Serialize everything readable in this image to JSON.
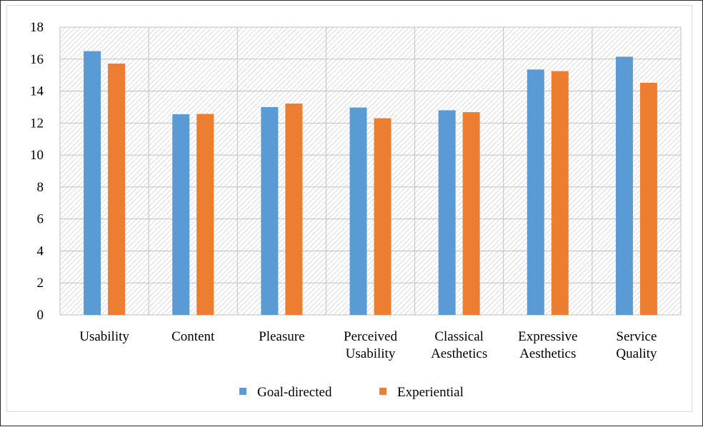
{
  "chart_data": {
    "type": "bar",
    "categories": [
      [
        "Usability"
      ],
      [
        "Content"
      ],
      [
        "Pleasure"
      ],
      [
        "Perceived",
        "Usability"
      ],
      [
        "Classical",
        "Aesthetics"
      ],
      [
        "Expressive",
        "Aesthetics"
      ],
      [
        "Service",
        "Quality"
      ]
    ],
    "series": [
      {
        "name": "Goal-directed",
        "color": "#5b9bd5",
        "values": [
          16.5,
          12.55,
          13.0,
          12.97,
          12.8,
          15.35,
          16.15
        ]
      },
      {
        "name": "Experiential",
        "color": "#ed7d31",
        "values": [
          15.72,
          12.57,
          13.22,
          12.3,
          12.68,
          15.25,
          14.52
        ]
      }
    ],
    "ylim": [
      0,
      18
    ],
    "yticks": [
      "0",
      "2",
      "4",
      "6",
      "8",
      "10",
      "12",
      "14",
      "16",
      "18"
    ],
    "grid": true,
    "plot_background": "hatched",
    "legend_position": "bottom"
  }
}
